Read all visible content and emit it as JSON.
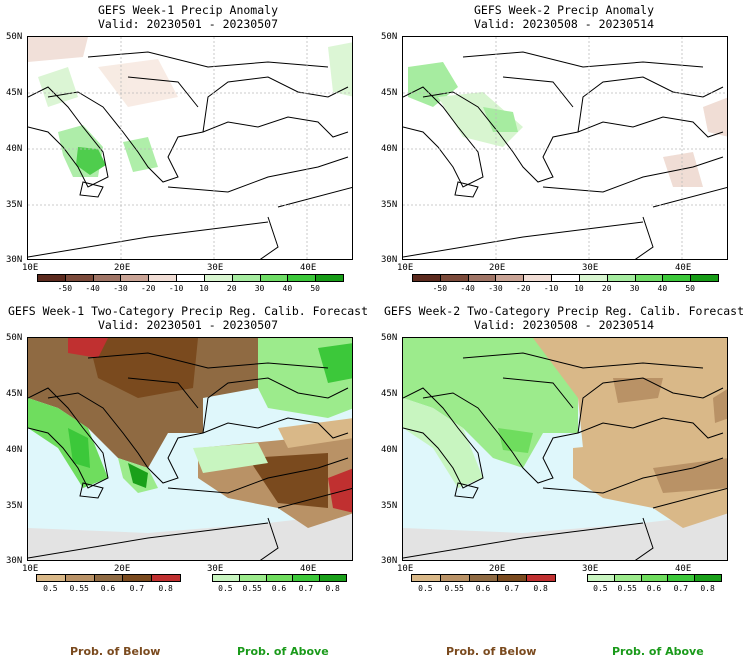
{
  "panels": [
    {
      "id": "w1-anom",
      "title": "GEFS Week-1 Precip Anomaly",
      "valid": "Valid: 20230501 - 20230507"
    },
    {
      "id": "w2-anom",
      "title": "GEFS Week-2 Precip Anomaly",
      "valid": "Valid: 20230508 - 20230514"
    },
    {
      "id": "w1-prob",
      "title": "GEFS Week-1 Two-Category Precip Reg. Calib. Forecast",
      "valid": "Valid: 20230501 - 20230507"
    },
    {
      "id": "w2-prob",
      "title": "GEFS Week-2 Two-Category Precip Reg. Calib. Forecast",
      "valid": "Valid: 20230508 - 20230514"
    }
  ],
  "axes": {
    "lat_labels": [
      "50N",
      "45N",
      "40N",
      "35N",
      "30N"
    ],
    "lon_labels": [
      "10E",
      "20E",
      "30E",
      "40E"
    ]
  },
  "anomaly_colorbar": {
    "labels": [
      "-50",
      "-40",
      "-30",
      "-20",
      "-10",
      "10",
      "20",
      "30",
      "40",
      "50"
    ],
    "colors": [
      "#5c2a1e",
      "#7b4a3a",
      "#a07566",
      "#c9a496",
      "#f0ddd5",
      "#ffffff",
      "#d8f5d0",
      "#a6eca0",
      "#6fdd66",
      "#3cc83a",
      "#179c17"
    ]
  },
  "prob_below": {
    "labels": [
      "0.5",
      "0.55",
      "0.6",
      "0.7",
      "0.8"
    ],
    "colors": [
      "#d9b888",
      "#b99266",
      "#8f6a42",
      "#7a4a1e",
      "#c03030"
    ],
    "caption": "Prob. of Below",
    "caption_color": "#7a4a1e"
  },
  "prob_above": {
    "labels": [
      "0.5",
      "0.55",
      "0.6",
      "0.7",
      "0.8"
    ],
    "colors": [
      "#c8f5c0",
      "#9ceb8c",
      "#6fdd5e",
      "#3cc83a",
      "#1aa01a"
    ],
    "caption": "Prob. of Above",
    "caption_color": "#1a9a1a"
  },
  "map_colors": {
    "sea": "#dff7fb",
    "land_none": "#ffffff",
    "no_data": "#e3e3e3",
    "border": "#000000"
  }
}
